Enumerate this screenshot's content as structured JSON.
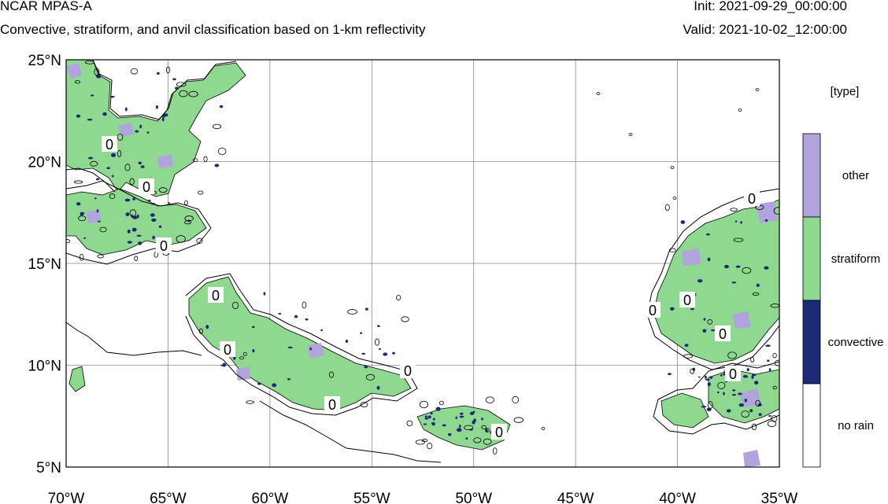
{
  "header": {
    "title": "NCAR MPAS-A",
    "subtitle": "Convective, stratiform, and anvil classification based on 1-km reflectivity",
    "init": "Init: 2021-09-29_00:00:00",
    "valid": "Valid: 2021-10-02_12:00:00"
  },
  "map": {
    "lon_range": [
      -70,
      -35
    ],
    "lat_range": [
      5,
      25
    ],
    "lat_ticks": [
      {
        "value": 25,
        "label": "25°N"
      },
      {
        "value": 20,
        "label": "20°N"
      },
      {
        "value": 15,
        "label": "15°N"
      },
      {
        "value": 10,
        "label": "10°N"
      },
      {
        "value": 5,
        "label": "5°N"
      }
    ],
    "lon_ticks": [
      {
        "value": -70,
        "label": "70°W"
      },
      {
        "value": -65,
        "label": "65°W"
      },
      {
        "value": -60,
        "label": "60°W"
      },
      {
        "value": -55,
        "label": "55°W"
      },
      {
        "value": -50,
        "label": "50°W"
      },
      {
        "value": -45,
        "label": "45°W"
      },
      {
        "value": -40,
        "label": "40°W"
      },
      {
        "value": -35,
        "label": "35°W"
      }
    ],
    "contour_label": "0",
    "colors": {
      "other": "#b1a3db",
      "stratiform": "#8fd88f",
      "convective": "#1c2a78",
      "no_rain": "#ffffff",
      "grid": "#8a8a8a",
      "contour": "#000000"
    }
  },
  "legend": {
    "title": "[type]",
    "items": [
      {
        "label": "other",
        "color": "#b1a3db"
      },
      {
        "label": "stratiform",
        "color": "#8fd88f"
      },
      {
        "label": "convective",
        "color": "#1c2a78"
      },
      {
        "label": "no rain",
        "color": "#ffffff"
      }
    ]
  }
}
